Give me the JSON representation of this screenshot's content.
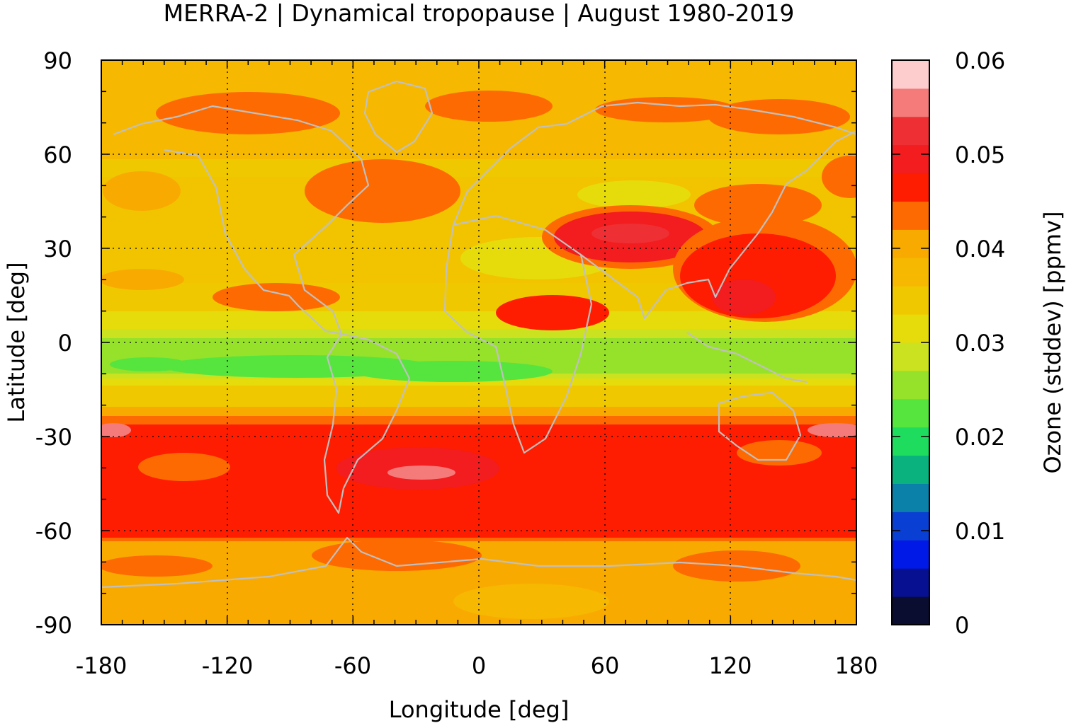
{
  "title": "MERRA-2 | Dynamical tropopause | August 1980-2019",
  "xlabel": "Longitude [deg]",
  "ylabel": "Latitude [deg]",
  "colorbar_label": "Ozone (stddev) [ppmv]",
  "chart_data": {
    "type": "heatmap",
    "title": "MERRA-2 | Dynamical tropopause | August 1980-2019",
    "xlabel": "Longitude [deg]",
    "ylabel": "Latitude [deg]",
    "xlim": [
      -180,
      180
    ],
    "ylim": [
      -90,
      90
    ],
    "x_ticks": [
      "-180",
      "-120",
      "-60",
      "0",
      "60",
      "120",
      "180"
    ],
    "y_ticks": [
      "90",
      "60",
      "30",
      "0",
      "-30",
      "-60",
      "-90"
    ],
    "grid": true,
    "coastlines": true,
    "colorbar": {
      "label": "Ozone (stddev) [ppmv]",
      "range": [
        0,
        0.06
      ],
      "ticks": [
        "0",
        "0.01",
        "0.02",
        "0.03",
        "0.04",
        "0.05",
        "0.06"
      ],
      "levels": 20,
      "colors": [
        "#0b0d30",
        "#061090",
        "#0019e6",
        "#0a3fd4",
        "#0b80a8",
        "#0ab27e",
        "#1edd5e",
        "#56e43e",
        "#96e12a",
        "#cae21f",
        "#e6dc0c",
        "#f0c800",
        "#f6b800",
        "#f9aa00",
        "#fe6a02",
        "#fe1d00",
        "#f31c1e",
        "#ee2f33",
        "#f57b7b",
        "#fdcccc"
      ]
    },
    "summary_by_latitude": [
      {
        "lat": 85,
        "value": 0.038
      },
      {
        "lat": 60,
        "value": 0.039
      },
      {
        "lat": 45,
        "value": 0.038
      },
      {
        "lat": 30,
        "value": 0.036
      },
      {
        "lat": 15,
        "value": 0.04
      },
      {
        "lat": 0,
        "value": 0.025
      },
      {
        "lat": -15,
        "value": 0.034
      },
      {
        "lat": -35,
        "value": 0.05
      },
      {
        "lat": -50,
        "value": 0.051
      },
      {
        "lat": -65,
        "value": 0.042
      },
      {
        "lat": -80,
        "value": 0.038
      }
    ]
  }
}
